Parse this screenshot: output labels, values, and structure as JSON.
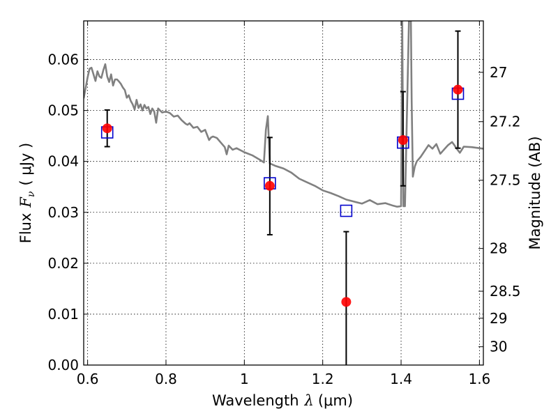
{
  "chart_data": {
    "type": "line",
    "xlabel": "Wavelength",
    "xlabel_symbol": "λ",
    "xlabel_unit": "(μm)",
    "ylabel": "Flux",
    "ylabel_symbol": "F",
    "ylabel_subscript": "ν",
    "ylabel_unit": "( μJy )",
    "y2label": "Magnitude (AB)",
    "xlim": [
      0.59,
      1.61
    ],
    "ylim": [
      0.0,
      0.0676
    ],
    "grid": true,
    "x_ticks": [
      0.6,
      0.8,
      1.0,
      1.2,
      1.4,
      1.6
    ],
    "x_tick_labels": [
      "0.6",
      "0.8",
      "1",
      "1.2",
      "1.4",
      "1.6"
    ],
    "y_ticks": [
      0.0,
      0.01,
      0.02,
      0.03,
      0.04,
      0.05,
      0.06
    ],
    "y_tick_labels": [
      "0.00",
      "0.01",
      "0.02",
      "0.03",
      "0.04",
      "0.05",
      "0.06"
    ],
    "y2_ticks": [
      {
        "label": "27",
        "flux": 0.0575
      },
      {
        "label": "27.2",
        "flux": 0.0478
      },
      {
        "label": "27.5",
        "flux": 0.0363
      },
      {
        "label": "28",
        "flux": 0.0229
      },
      {
        "label": "28.5",
        "flux": 0.0145
      },
      {
        "label": "29",
        "flux": 0.0092
      },
      {
        "label": "30",
        "flux": 0.0036
      }
    ],
    "model_spectrum": {
      "color": "#808080",
      "x": [
        0.59,
        0.6,
        0.605,
        0.61,
        0.62,
        0.625,
        0.63,
        0.635,
        0.64,
        0.645,
        0.65,
        0.655,
        0.66,
        0.665,
        0.67,
        0.675,
        0.68,
        0.685,
        0.69,
        0.695,
        0.7,
        0.705,
        0.71,
        0.715,
        0.72,
        0.725,
        0.73,
        0.735,
        0.74,
        0.745,
        0.75,
        0.755,
        0.76,
        0.765,
        0.77,
        0.775,
        0.78,
        0.79,
        0.8,
        0.81,
        0.82,
        0.83,
        0.84,
        0.85,
        0.855,
        0.86,
        0.87,
        0.88,
        0.89,
        0.9,
        0.91,
        0.915,
        0.92,
        0.93,
        0.94,
        0.95,
        0.955,
        0.96,
        0.97,
        0.98,
        1.0,
        1.02,
        1.04,
        1.05,
        1.055,
        1.06,
        1.065,
        1.08,
        1.1,
        1.12,
        1.14,
        1.16,
        1.18,
        1.2,
        1.22,
        1.24,
        1.26,
        1.28,
        1.3,
        1.32,
        1.34,
        1.36,
        1.38,
        1.39,
        1.4,
        1.403,
        1.406,
        1.41,
        1.42,
        1.425,
        1.427,
        1.43,
        1.435,
        1.44,
        1.45,
        1.47,
        1.48,
        1.49,
        1.5,
        1.52,
        1.53,
        1.535,
        1.54,
        1.55,
        1.56,
        1.58,
        1.6,
        1.61
      ],
      "y": [
        0.0524,
        0.0565,
        0.0582,
        0.0584,
        0.0558,
        0.0577,
        0.0567,
        0.0564,
        0.0579,
        0.0591,
        0.0567,
        0.0556,
        0.0571,
        0.0549,
        0.0561,
        0.0561,
        0.0557,
        0.0552,
        0.0545,
        0.054,
        0.0525,
        0.053,
        0.0519,
        0.0512,
        0.0502,
        0.0521,
        0.0505,
        0.0512,
        0.05,
        0.0511,
        0.0504,
        0.0507,
        0.0493,
        0.0504,
        0.0498,
        0.0476,
        0.0504,
        0.0496,
        0.0498,
        0.0495,
        0.0488,
        0.049,
        0.0481,
        0.0474,
        0.0472,
        0.0475,
        0.0466,
        0.0468,
        0.0458,
        0.0462,
        0.0442,
        0.0447,
        0.0449,
        0.0446,
        0.0437,
        0.0428,
        0.0414,
        0.0431,
        0.0423,
        0.0426,
        0.0418,
        0.0412,
        0.0403,
        0.0398,
        0.0462,
        0.0489,
        0.0396,
        0.0391,
        0.0386,
        0.0378,
        0.0366,
        0.0359,
        0.0352,
        0.0343,
        0.0338,
        0.0332,
        0.0325,
        0.0321,
        0.0317,
        0.0324,
        0.0316,
        0.0318,
        0.0313,
        0.0311,
        0.0312,
        0.0676,
        0.0312,
        0.0312,
        0.0676,
        0.0676,
        0.052,
        0.037,
        0.039,
        0.04,
        0.0409,
        0.0432,
        0.0425,
        0.0434,
        0.0415,
        0.0432,
        0.0438,
        0.0433,
        0.0427,
        0.0417,
        0.0429,
        0.0428,
        0.0426,
        0.0425
      ]
    },
    "model_photometry": {
      "marker": "open-square",
      "color": "#0000cc",
      "x": [
        0.65,
        1.065,
        1.26,
        1.405,
        1.545
      ],
      "y": [
        0.0457,
        0.0357,
        0.0303,
        0.0437,
        0.0533
      ]
    },
    "observed_photometry": {
      "marker": "filled-circle",
      "color": "#ff0000",
      "x": [
        0.65,
        1.065,
        1.26,
        1.405,
        1.545
      ],
      "y": [
        0.0465,
        0.0352,
        0.0124,
        0.0442,
        0.0541
      ],
      "yerr_low": [
        0.0429,
        0.0256,
        0.0,
        0.0352,
        0.0426
      ],
      "yerr_high": [
        0.0501,
        0.0447,
        0.0262,
        0.0537,
        0.0656
      ]
    }
  }
}
